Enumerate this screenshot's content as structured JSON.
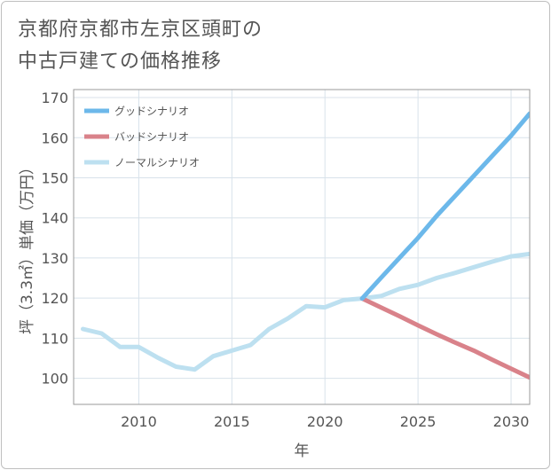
{
  "title": {
    "line1": "京都府京都市左京区頭町の",
    "line2": "中古戸建ての価格推移"
  },
  "colors": {
    "good": "#6cb8ea",
    "bad": "#d9828a",
    "normal": "#bde0f0",
    "grid": "#d8e2ea",
    "text": "#555555"
  },
  "chart_data": {
    "type": "line",
    "title": "京都府京都市左京区頭町の中古戸建ての価格推移",
    "xlabel": "年",
    "ylabel": "坪（3.3㎡）単価（万円）",
    "xlim": [
      2006.5,
      2031
    ],
    "ylim": [
      93.5,
      172
    ],
    "x_ticks": [
      2010,
      2015,
      2020,
      2025,
      2030
    ],
    "y_ticks": [
      100,
      110,
      120,
      130,
      140,
      150,
      160,
      170
    ],
    "grid": true,
    "legend_position": "top-left",
    "series": [
      {
        "name": "グッドシナリオ",
        "color_key": "good",
        "x": [
          2022,
          2023,
          2024,
          2025,
          2026,
          2027,
          2028,
          2029,
          2030,
          2031
        ],
        "y": [
          119.9,
          125,
          130,
          135,
          140.5,
          145.5,
          150.5,
          155.5,
          160.5,
          166
        ]
      },
      {
        "name": "バッドシナリオ",
        "color_key": "bad",
        "x": [
          2022,
          2023,
          2024,
          2025,
          2026,
          2027,
          2028,
          2029,
          2030,
          2031
        ],
        "y": [
          119.9,
          117.7,
          115.5,
          113.2,
          111,
          108.9,
          106.9,
          104.6,
          102.4,
          100.2
        ]
      },
      {
        "name": "ノーマルシナリオ",
        "color_key": "normal",
        "x": [
          2007,
          2008,
          2009,
          2010,
          2011,
          2012,
          2013,
          2014,
          2015,
          2016,
          2017,
          2018,
          2019,
          2020,
          2021,
          2022,
          2023,
          2024,
          2025,
          2026,
          2027,
          2028,
          2029,
          2030,
          2031
        ],
        "y": [
          112.3,
          111.2,
          107.8,
          107.8,
          105.2,
          102.9,
          102.2,
          105.5,
          106.9,
          108.3,
          112.3,
          114.9,
          118,
          117.7,
          119.5,
          119.9,
          120.5,
          122.3,
          123.3,
          125,
          126.3,
          127.7,
          129.1,
          130.4,
          131
        ]
      }
    ]
  }
}
